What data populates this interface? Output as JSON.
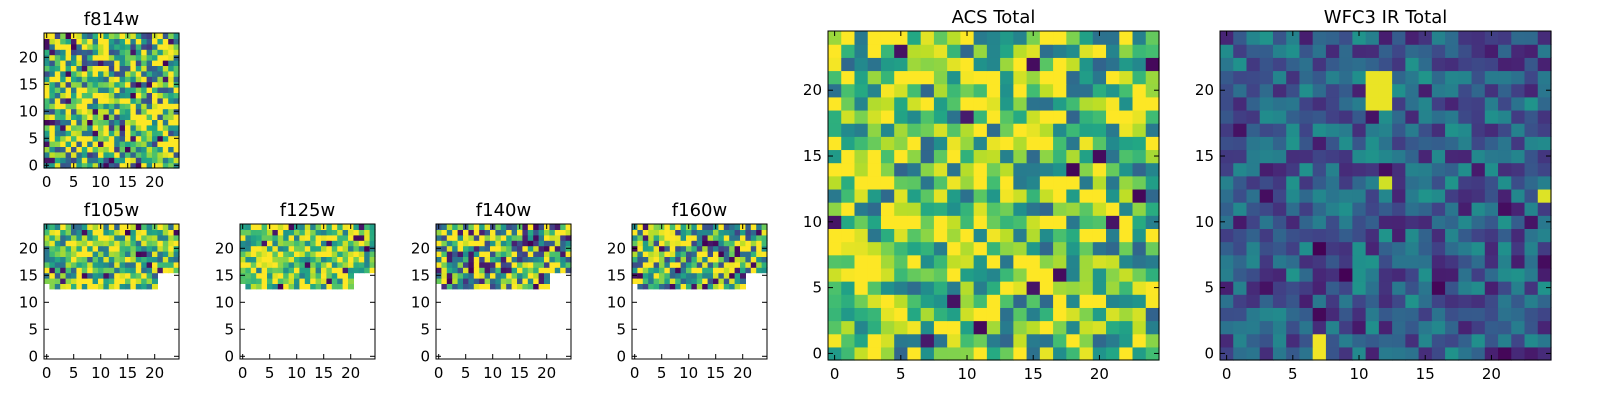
{
  "colors": {
    "colormap": "viridis",
    "background": "#ffffff",
    "frame": "#000000"
  },
  "chart_data": [
    {
      "type": "heatmap",
      "title": "f814w",
      "grid": [
        25,
        25
      ],
      "coverage_rows": [
        0,
        24
      ],
      "xticks": [
        "0",
        "5",
        "10",
        "15",
        "20"
      ],
      "yticks": [
        "0",
        "5",
        "10",
        "15",
        "20"
      ],
      "value_range": [
        0,
        1
      ],
      "seed": 11,
      "bias": 0.72,
      "spread": 0.55,
      "min_dark": 0.05
    },
    {
      "type": "heatmap",
      "title": "f105w",
      "grid": [
        25,
        25
      ],
      "coverage_rows": [
        13,
        24
      ],
      "xticks": [
        "0",
        "5",
        "10",
        "15",
        "20"
      ],
      "yticks": [
        "0",
        "5",
        "10",
        "15",
        "20"
      ],
      "value_range": [
        0,
        1
      ],
      "seed": 21,
      "bias": 0.74,
      "spread": 0.45,
      "min_dark": 0.04
    },
    {
      "type": "heatmap",
      "title": "f125w",
      "grid": [
        25,
        25
      ],
      "coverage_rows": [
        13,
        24
      ],
      "xticks": [
        "0",
        "5",
        "10",
        "15",
        "20"
      ],
      "yticks": [
        "0",
        "5",
        "10",
        "15",
        "20"
      ],
      "value_range": [
        0,
        1
      ],
      "seed": 33,
      "bias": 0.8,
      "spread": 0.38,
      "min_dark": 0.03
    },
    {
      "type": "heatmap",
      "title": "f140w",
      "grid": [
        25,
        25
      ],
      "coverage_rows": [
        13,
        24
      ],
      "xticks": [
        "0",
        "5",
        "10",
        "15",
        "20"
      ],
      "yticks": [
        "0",
        "5",
        "10",
        "15",
        "20"
      ],
      "value_range": [
        0,
        1
      ],
      "seed": 47,
      "bias": 0.66,
      "spread": 0.6,
      "min_dark": 0.06
    },
    {
      "type": "heatmap",
      "title": "f160w",
      "grid": [
        25,
        25
      ],
      "coverage_rows": [
        13,
        24
      ],
      "xticks": [
        "0",
        "5",
        "10",
        "15",
        "20"
      ],
      "yticks": [
        "0",
        "5",
        "10",
        "15",
        "20"
      ],
      "value_range": [
        0,
        1
      ],
      "seed": 59,
      "bias": 0.7,
      "spread": 0.5,
      "min_dark": 0.04
    },
    {
      "type": "heatmap",
      "title": "ACS Total",
      "grid": [
        25,
        25
      ],
      "coverage_rows": [
        0,
        24
      ],
      "xticks": [
        "0",
        "5",
        "10",
        "15",
        "20"
      ],
      "yticks": [
        "0",
        "5",
        "10",
        "15",
        "20"
      ],
      "value_range": [
        0,
        1
      ],
      "seed": 71,
      "bias": 0.74,
      "spread": 0.42,
      "min_dark": 0.02
    },
    {
      "type": "heatmap",
      "title": "WFC3 IR Total",
      "grid": [
        25,
        25
      ],
      "coverage_rows": [
        0,
        24
      ],
      "xticks": [
        "0",
        "5",
        "10",
        "15",
        "20"
      ],
      "yticks": [
        "0",
        "5",
        "10",
        "15",
        "20"
      ],
      "value_range": [
        0,
        1
      ],
      "seed": 83,
      "bias": 0.3,
      "spread": 0.22,
      "min_dark": 0.03,
      "hotspots": [
        {
          "x": 11,
          "y": 19,
          "w": 2,
          "h": 3,
          "v": 0.97
        },
        {
          "x": 12,
          "y": 13,
          "w": 1,
          "h": 1,
          "v": 0.93
        },
        {
          "x": 24,
          "y": 12,
          "w": 1,
          "h": 1,
          "v": 0.95
        },
        {
          "x": 7,
          "y": 0,
          "w": 1,
          "h": 2,
          "v": 0.98
        }
      ]
    }
  ]
}
